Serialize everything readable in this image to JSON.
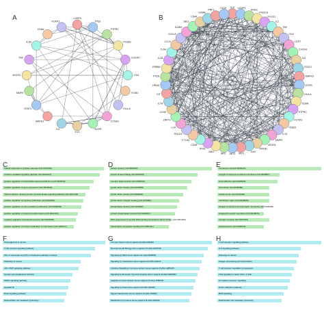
{
  "panels": {
    "A": "A",
    "B": "B",
    "C": "C",
    "D": "D",
    "E": "E",
    "F": "F",
    "G": "G",
    "H": "H"
  },
  "network_a": {
    "nodes": [
      "CASP3",
      "TP53",
      "PTPRC",
      "ITGAM",
      "CXCR4",
      "CD4",
      "ITGB3",
      "HLA-A",
      "CCND1",
      "EGFR",
      "IL10",
      "IL6",
      "MAPK3",
      "STAT3",
      "MMP9",
      "VEGFA",
      "TNF",
      "IL1B",
      "CD8A",
      "FOXP3"
    ]
  },
  "network_b": {
    "nodes": [
      "ICS",
      "CASP3",
      "HNAS",
      "PIK3CA",
      "PLCG1",
      "IL2",
      "TNF",
      "CD4",
      "CCR7",
      "CXCR4",
      "IL6",
      "STAT3",
      "MAPK3",
      "EGFR",
      "HLA-A",
      "CD8A",
      "PTPRC",
      "FOXP3",
      "ITGB3",
      "IL10",
      "MMP9",
      "VEGFA",
      "NFKB1",
      "JUN",
      "MYC",
      "AKT1",
      "SRC",
      "JAK2",
      "IFNG",
      "CD28",
      "CTLA4",
      "PDCD1",
      "LCK",
      "ZAP70",
      "CD3E",
      "IL7R",
      "KIT",
      "HRAS",
      "PTEN",
      "ERBB2",
      "IL1B",
      "TLR4",
      "CCL5",
      "CXCL8",
      "ICAM1",
      "SELL",
      "CD44",
      "GZMB",
      "PRF1",
      "CD19"
    ]
  },
  "colors": {
    "green_bar": "#b7e9b7",
    "teal_bar": "#aeeaf0",
    "network_edge": "#3c4450"
  },
  "bar_panels": {
    "C": [
      "cellular response to cytokine stimulus (GO:0071345)",
      "cytokine-mediated signaling pathway (GO:0019221)",
      "positive regulation of intracellular signal transduction (GO:1902533)",
      "positive regulation of gene expression (GO:0010628)",
      "transmembrane receptor protein tyrosine kinase signaling pathway (GO:0007169)",
      "positive regulation of cytokine production (GO:0001819)",
      "positive regulation of cell population proliferation (GO:0008284)",
      "positive regulation of protein phosphorylation (GO:0001934)",
      "negative regulation of apoptotic process (GO:0043066)",
      "positive regulation of protein localization to membrane (GO:1905477)"
    ],
    "D": [
      "protein binding (GO:0005515)",
      "protein kinase binding (GO:0019901)",
      "receptor ligand activity (GO:0048018)",
      "growth factor binding (GO:0019838)",
      "growth factor activity (GO:0008083)",
      "growth factor receptor binding (GO:0070851)",
      "phosphatase binding (GO:0019902)",
      "protein phosphatase binding (GO:0019903)",
      "RNA polymerase II-specific DNA-binding transcription factor binding (GO:0061629)",
      "transcription coregulator binding (GO:0001221)"
    ],
    "E": [
      "membrane raft (GO:0045121)",
      "integral component of plasma membrane (GO:0005887)",
      "focal adhesion (GO:0005925)",
      "cell surface (GO:0009986)",
      "vesicle lumen (GO:0031983)",
      "membrane region (GO:0098589)",
      "integral component of presynaptic membrane (GO:0099056)",
      "phagocytic vesicle membrane (GO:0030670)",
      "receptor complex (GO:0043235)",
      "endolysosome (GO:0036019)"
    ],
    "F": [
      "Proteoglycans in cancer",
      "T cell receptor signaling pathway",
      "PD-L1 expression and PD-1 checkpoint pathway in cancer",
      "Pathways in cancer",
      "JAK-STAT signaling pathway",
      "Human cytomegalovirus infection",
      "MAPK signaling pathway",
      "Hepatitis B",
      "Rap1 signaling pathway",
      "Natural killer cell mediated cytotoxicity"
    ],
    "G": [
      "Immune System Homo sapiens R-HSA-168256",
      "Developmental Biology Homo sapiens R-HSA-1266738",
      "Signaling by MET Homo sapiens R-HSA-6806834",
      "Signaling by Interleukins Homo sapiens R-HSA-449147",
      "Cytokine Signaling in Immune system Homo sapiens R-HSA-1280215",
      "Signaling by Receptor Tyrosine Kinases Homo sapiens R-HSA-9006934",
      "Adaptive Immune System Homo sapiens R-HSA-1280218",
      "Signaling by NGF Homo sapiens R-HSA-166520",
      "Signal Transduction Homo sapiens R-HSA-162582",
      "Metabolism of proteins Homo sapiens R-HSA-392499"
    ],
    "H": [
      "T-cell receptor signaling pathway",
      "IL-6 signaling pathway",
      "Pathways in cancer",
      "Antigen processing and presentation",
      "T cell receptor regulation of apoptosis",
      "TCR signaling in naive CD4+ T cells",
      "Fc epsilon receptor I signaling",
      "Nectin adhesion pathway",
      "BCR signaling",
      "Natural killer cell mediated cytotoxicity"
    ]
  },
  "bar_values": {
    "C": [
      100,
      96,
      90,
      86,
      82,
      80,
      78,
      74,
      72,
      70
    ],
    "D": [
      100,
      86,
      80,
      76,
      72,
      68,
      66,
      64,
      60,
      58
    ],
    "E": [
      100,
      60,
      58,
      50,
      50,
      50,
      45,
      45,
      50,
      45
    ],
    "F": [
      100,
      90,
      86,
      76,
      74,
      68,
      66,
      64,
      62,
      60
    ],
    "G": [
      100,
      96,
      92,
      90,
      88,
      86,
      84,
      82,
      80,
      78
    ],
    "H": [
      100,
      80,
      78,
      76,
      74,
      72,
      70,
      68,
      64,
      62
    ]
  }
}
